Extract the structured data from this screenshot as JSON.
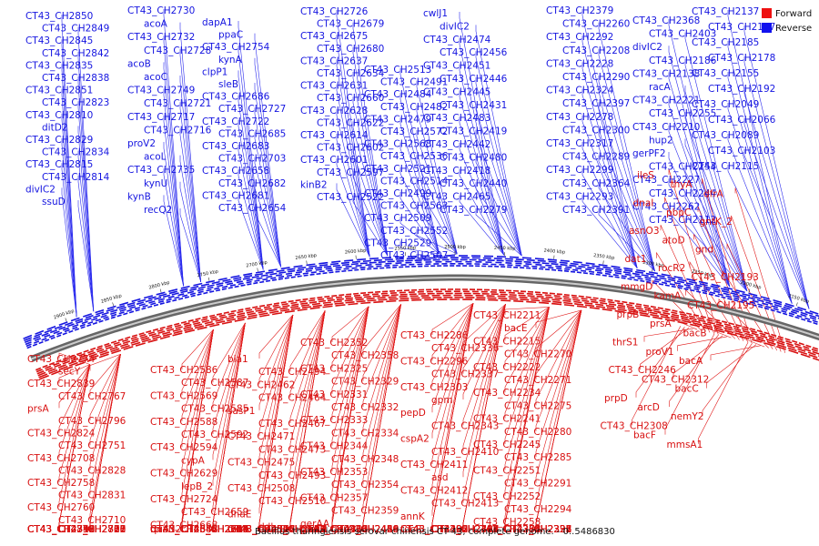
{
  "caption": "Bacillus thuringiensis serovar chinensis CT-43, complete genome. - 0..5486830",
  "legend": [
    {
      "label": "Forward",
      "color": "#ee1111"
    },
    {
      "label": "Reverse",
      "color": "#1111ee"
    }
  ],
  "colors": {
    "forward": "#d81010",
    "reverse": "#1515e0"
  },
  "ticks": [
    "2100 kbp",
    "2150 kbp",
    "2200 kbp",
    "2250 kbp",
    "2300 kbp",
    "2350 kbp",
    "2400 kbp",
    "2450 kbp",
    "2500 kbp",
    "2550 kbp",
    "2600 kbp",
    "2650 kbp",
    "2700 kbp",
    "2750 kbp",
    "2800 kbp",
    "2850 kbp",
    "2900 kbp"
  ],
  "blue_labels": [
    "CT43_CH2850",
    "CT43_CH2849",
    "CT43_CH2845",
    "CT43_CH2842",
    "CT43_CH2835",
    "CT43_CH2838",
    "CT43_CH2851",
    "CT43_CH2823",
    "CT43_CH2810",
    "ditD2",
    "CT43_CH2829",
    "CT43_CH2834",
    "CT43_CH2815",
    "CT43_CH2814",
    "divIC2",
    "ssuD",
    "CT43_CH2730",
    "acoA",
    "CT43_CH2732",
    "CT43_CH2728",
    "acoB",
    "acoC",
    "CT43_CH2749",
    "CT43_CH2721",
    "CT43_CH2717",
    "CT43_CH2716",
    "proV2",
    "acoL",
    "CT43_CH2735",
    "kynU",
    "kynB",
    "recQ2",
    "dapA1",
    "ppaC",
    "CT43_CH2754",
    "kynA",
    "clpP1",
    "sleB",
    "CT43_CH2686",
    "CT43_CH2727",
    "CT43_CH2722",
    "CT43_CH2685",
    "CT43_CH2683",
    "CT43_CH2703",
    "CT43_CH2658",
    "CT43_CH2682",
    "CT43_CH2681",
    "CT43_CH2654",
    "CT43_CH2726",
    "CT43_CH2679",
    "CT43_CH2675",
    "CT43_CH2680",
    "CT43_CH2637",
    "CT43_CH2634",
    "CT43_CH2631",
    "CT43_CH2660",
    "CT43_CH2628",
    "CT43_CH2622",
    "CT43_CH2614",
    "CT43_CH2602",
    "CT43_CH2601",
    "CT43_CH2597",
    "kinB2",
    "CT43_CH2522",
    "CT43_CH2513",
    "CT43_CH2491",
    "CT43_CH2484",
    "CT43_CH2482",
    "CT43_CH2479",
    "CT43_CH2572",
    "CT43_CH2568",
    "CT43_CH2536",
    "CT43_CH2521",
    "CT43_CH2514",
    "CT43_CH2499",
    "CT43_CH2563",
    "CT43_CH2509",
    "CT43_CH2552",
    "CT43_CH2529",
    "CT43_CH2507",
    "cwlJ1",
    "divIC2",
    "CT43_CH2474",
    "CT43_CH2456",
    "CT43_CH2451",
    "CT43_CH2446",
    "CT43_CH2445",
    "CT43_CH2431",
    "CT43_CH2483",
    "CT43_CH2419",
    "CT43_CH2442",
    "CT43_CH2480",
    "CT43_CH2418",
    "CT43_CH2440",
    "CT43_CH2465",
    "CT43_CH2279",
    "CT43_CH2379",
    "CT43_CH2260",
    "CT43_CH2292",
    "CT43_CH2208",
    "CT43_CH2228",
    "CT43_CH2290",
    "CT43_CH2324",
    "CT43_CH2397",
    "CT43_CH2278",
    "CT43_CH2300",
    "CT43_CH2317",
    "CT43_CH2289",
    "CT43_CH2299",
    "CT43_CH2364",
    "CT43_CH2293",
    "CT43_CH2391",
    "CT43_CH2368",
    "CT43_CH2403",
    "divIC2",
    "CT43_CH2186",
    "CT43_CH2138",
    "racA",
    "CT43_CH2221",
    "CT43_CH2255",
    "CT43_CH2210",
    "hup2",
    "gerPF2",
    "CT43_CH2254",
    "CT43_CH2227",
    "CT43_CH2244",
    "CT43_CH2262",
    "CT43_CH2112",
    "CT43_CH2137",
    "CT43_CH2147",
    "CT43_CH2185",
    "CT43_CH2178",
    "CT43_CH2155",
    "CT43_CH2192",
    "CT43_CH2049",
    "CT43_CH2066",
    "CT43_CH2089",
    "CT43_CH2103",
    "CT43_CH2115"
  ],
  "red_labels": [
    "ileS",
    "thyA",
    "dfrA",
    "dnaI",
    "pbpC",
    "gntK_2",
    "asnO3",
    "atoD",
    "gnd",
    "dat1",
    "rocR2",
    "CT43_CH2193",
    "mmgD",
    "kamA",
    "CT43_CH2195",
    "prpB",
    "prsA",
    "bacB",
    "thrS1",
    "proV1",
    "bacA",
    "CT43_CH2246",
    "CT43_CH2312",
    "bacC",
    "prpD",
    "arcD",
    "nemY2",
    "CT43_CH2308",
    "bacF",
    "mmsA1",
    "CT43_CH2211",
    "bacE",
    "CT43_CH2215",
    "CT43_CH2270",
    "CT43_CH2222",
    "CT43_CH2271",
    "CT43_CH2234",
    "CT43_CH2275",
    "CT43_CH2241",
    "CT43_CH2280",
    "CT43_CH2245",
    "CT43_CH2285",
    "CT43_CH2251",
    "CT43_CH2291",
    "CT43_CH2252",
    "CT43_CH2294",
    "CT43_CH2258",
    "CT43_CH2295",
    "CT43_CH2261",
    "CT43_CH2321",
    "CT43_CH2272",
    "CT43_CH2322",
    "CT43_CH2273",
    "CT43_CH2326",
    "CT43_CH2276",
    "CT43_CH2327",
    "CT43_CH2281",
    "CT43_CH2328",
    "CT43_CH2284",
    "CT43_CH2335",
    "CT43_CH2286",
    "CT43_CH2336",
    "CT43_CH2296",
    "CT43_CH2337",
    "CT43_CH2303",
    "gpm",
    "pepD",
    "CT43_CH2343",
    "cspA2",
    "CT43_CH2410",
    "CT43_CH2411",
    "asd",
    "CT43_CH2412",
    "CT43_CH2413",
    "annK",
    "CT43_CH2387",
    "tdcB",
    "CT43_CH2388",
    "CT43_CH2392",
    "CT43_CH2395",
    "CT43_CH2400",
    "CT43_CH2402",
    "CT43_CH2404",
    "CT43_CH2406",
    "CT43_CH2407",
    "CT43_CH2415",
    "CT43_CH2422",
    "CT43_CH2382",
    "CT43_CH2383",
    "CT43_CH2384",
    "CT43_CH2352",
    "CT43_CH2358",
    "CT43_CH2325",
    "CT43_CH2329",
    "CT43_CH2331",
    "CT43_CH2332",
    "CT43_CH2333",
    "CT43_CH2334",
    "CT43_CH2344",
    "CT43_CH2348",
    "CT43_CH2353",
    "CT43_CH2354",
    "CT43_CH2357",
    "CT43_CH2359",
    "gerAA",
    "gerAC",
    "proC1",
    "CT43_CH2438",
    "CT43_CH2461",
    "CT43_CH2460",
    "CT43_CH2417",
    "CT43_CH2420",
    "glsA2",
    "CT43_CH2424",
    "CT43_CH2426",
    "CT43_CH2429",
    "CT43_CH2430",
    "CT43_CH2449",
    "CT43_CH2463",
    "CT43_CH2466",
    "bla1",
    "CT43_CH2494",
    "CT43_CH2462",
    "CT43_CH2464",
    "sasP1",
    "CT43_CH2467",
    "CT43_CH2471",
    "CT43_CH2473",
    "CT43_CH2475",
    "CT43_CH2493",
    "CT43_CH2508",
    "CT43_CH2510",
    "dnaE",
    "ddl",
    "tenA",
    "CT43_CH2512",
    "CT43_CH2515",
    "CT43_CH2516",
    "CT43_CH2503",
    "mvaB",
    "CT43_CH2517",
    "CT43_CH2520",
    "CT43_CH2523",
    "CT43_CH2526",
    "CT43_CH2544",
    "CT43_CH2571",
    "CT43_CH2576",
    "dnaI",
    "CT43_CH2596",
    "CT43_CH2606",
    "CT43_CH2586",
    "CT43_CH2587",
    "CT43_CH2569",
    "CT43_CH2585",
    "CT43_CH2588",
    "CT43_CH2592",
    "CT43_CH2594",
    "cypA",
    "CT43_CH2629",
    "lepB_2",
    "CT43_CH2724",
    "CT43_CH2659",
    "CT43_CH2668",
    "CT43_CH2714",
    "CT43_CH2645",
    "CT43_CH2723",
    "CT43_CH2646",
    "CT43_CH2635",
    "CT43_CH2642",
    "CT43_CH2644",
    "CT43_CH2647",
    "CT43_CH2650",
    "CT43_CH2648",
    "CT43_CH2661",
    "dnaN2",
    "CT43_CH2694",
    "CT43_CH2684",
    "CT43_CH2830",
    "rpiA",
    "CT43_CH2844",
    "CT43_CH2774",
    "secY",
    "CT43_CH2839",
    "CT43_CH2767",
    "prsA",
    "CT43_CH2796",
    "CT43_CH2824",
    "CT43_CH2751",
    "CT43_CH2708",
    "CT43_CH2828",
    "CT43_CH2758",
    "CT43_CH2831",
    "CT43_CH2760",
    "CT43_CH2710",
    "CT43_CH2836",
    "CT43_CH2768",
    "CT43_CH2715",
    "CT43_CH2827",
    "CT43_CH2759",
    "CT43_CH2700",
    "CT43_CH2711",
    "CT43_CH2778",
    "CT43_CH2718",
    "CT43_CH2780",
    "CT43_CH2719",
    "CT43_CH2812",
    "CT43_CH2742",
    "CT43_CH2731",
    "CT43_CH2799"
  ]
}
